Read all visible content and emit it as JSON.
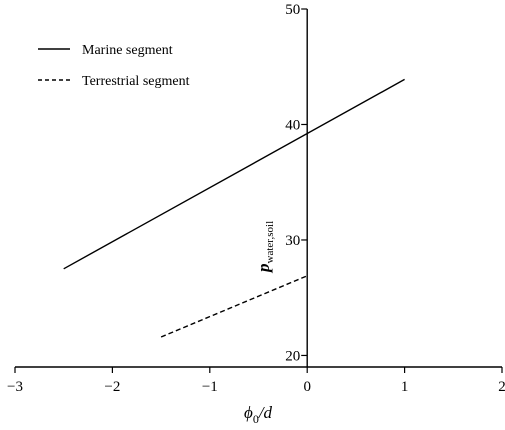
{
  "chart_data": {
    "type": "line",
    "xlabel": {
      "phi": "ϕ",
      "sub": "0",
      "rest": "/d"
    },
    "ylabel": {
      "main": "p",
      "sub": "water,soil"
    },
    "xlim": [
      -3,
      2
    ],
    "ylim": [
      19,
      50
    ],
    "x_ticks": [
      -3,
      -2,
      -1,
      0,
      1,
      2
    ],
    "x_tick_labels": [
      "−3",
      "−2",
      "−1",
      "0",
      "1",
      "2"
    ],
    "y_ticks": [
      20,
      30,
      40,
      50
    ],
    "y_tick_labels": [
      "20",
      "30",
      "40",
      "50"
    ],
    "grid": false,
    "legend_position": "top-left",
    "series": [
      {
        "name": "Marine segment",
        "style": "solid",
        "color": "#000000",
        "x": [
          -2.5,
          1.0
        ],
        "y": [
          27.5,
          43.9
        ]
      },
      {
        "name": "Terrestrial segment",
        "style": "dashed",
        "color": "#000000",
        "x": [
          -1.5,
          0.0
        ],
        "y": [
          21.6,
          26.9
        ]
      }
    ]
  }
}
